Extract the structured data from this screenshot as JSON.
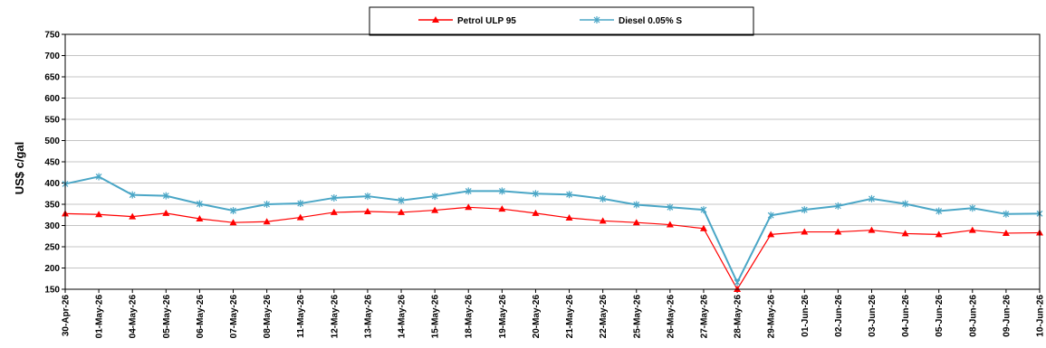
{
  "chart_data": {
    "type": "line",
    "title": "",
    "xlabel": "",
    "ylabel": "US$ c/gal",
    "ylim": [
      150,
      750
    ],
    "yticks": [
      150,
      200,
      250,
      300,
      350,
      400,
      450,
      500,
      550,
      600,
      650,
      700,
      750
    ],
    "grid": "horizontal",
    "legend_position": "top-center",
    "categories": [
      "30-Apr-26",
      "01-May-26",
      "04-May-26",
      "05-May-26",
      "06-May-26",
      "07-May-26",
      "08-May-26",
      "11-May-26",
      "12-May-26",
      "13-May-26",
      "14-May-26",
      "15-May-26",
      "18-May-26",
      "19-May-26",
      "20-May-26",
      "21-May-26",
      "22-May-26",
      "25-May-26",
      "26-May-26",
      "27-May-26",
      "28-May-26",
      "29-May-26",
      "01-Jun-26",
      "02-Jun-26",
      "03-Jun-26",
      "04-Jun-26",
      "05-Jun-26",
      "08-Jun-26",
      "09-Jun-26",
      "10-Jun-26"
    ],
    "series": [
      {
        "name": "Petrol ULP 95",
        "color": "#ff0000",
        "marker": "triangle",
        "values": [
          328,
          326,
          321,
          329,
          316,
          307,
          309,
          319,
          331,
          333,
          331,
          336,
          343,
          339,
          329,
          318,
          311,
          307,
          302,
          293,
          150,
          279,
          285,
          285,
          289,
          281,
          279,
          289,
          282,
          283
        ]
      },
      {
        "name": "Diesel 0.05% S",
        "color": "#4aa6c6",
        "marker": "star",
        "values": [
          398,
          415,
          372,
          370,
          351,
          335,
          350,
          352,
          365,
          369,
          359,
          369,
          381,
          381,
          375,
          373,
          363,
          349,
          343,
          337,
          166,
          324,
          337,
          346,
          363,
          351,
          334,
          341,
          327,
          328
        ]
      }
    ]
  }
}
